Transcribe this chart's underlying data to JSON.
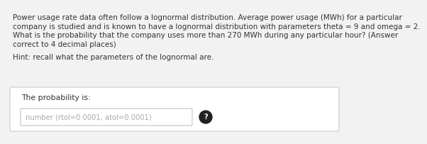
{
  "bg_color": "#f2f2f2",
  "text_color": "#333333",
  "line1": "Power usage rate data often follow a lognormal distribution. Average power usage (MWh) for a particular",
  "line2": "company is studied and is known to have a lognormal distribution with parameters theta = 9 and omega = 2.",
  "line3": "What is the probability that the company uses more than 270 MWh during any particular hour? (Answer",
  "line4": "correct to 4 decimal places)",
  "hint": "Hint: recall what the parameters of the lognormal are.",
  "box_label": "The probability is:",
  "input_placeholder": "number (rtol=0.0001, atol=0.0001)",
  "box_bg": "#ffffff",
  "box_border": "#cccccc",
  "input_border": "#bbbbbb",
  "icon_color": "#222222",
  "font_size_main": 7.5,
  "font_size_hint": 7.5,
  "font_size_box": 7.8,
  "font_size_input": 7.2
}
